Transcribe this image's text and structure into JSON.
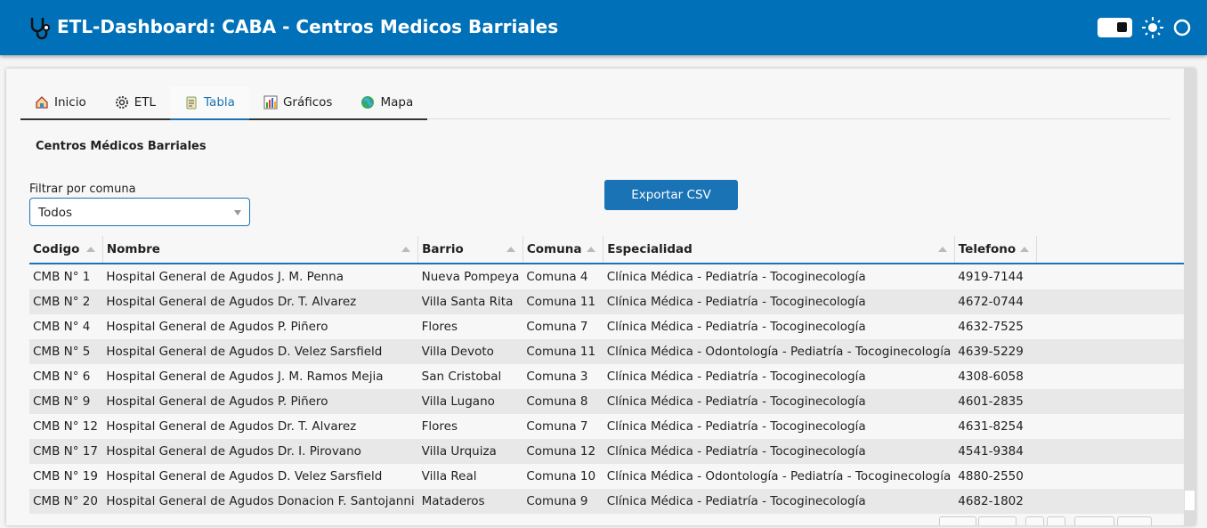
{
  "header": {
    "title": "ETL-Dashboard: CABA - Centros Medicos Barriales"
  },
  "tabs": [
    "Inicio",
    "ETL",
    "Tabla",
    "Gráficos",
    "Mapa"
  ],
  "section_title": "Centros Médicos Barriales",
  "filter": {
    "label": "Filtrar por comuna",
    "selected": "Todos"
  },
  "export_button": "Exportar CSV",
  "table": {
    "columns": [
      "Codigo",
      "Nombre",
      "Barrio",
      "Comuna",
      "Especialidad",
      "Telefono"
    ],
    "rows": [
      [
        "CMB N° 1",
        "Hospital General de Agudos J. M. Penna",
        "Nueva Pompeya",
        "Comuna 4",
        "Clínica Médica - Pediatría - Tocoginecología",
        "4919-7144"
      ],
      [
        "CMB N° 2",
        "Hospital General de Agudos Dr. T. Alvarez",
        "Villa Santa Rita",
        "Comuna 11",
        "Clínica Médica - Pediatría - Tocoginecología",
        "4672-0744"
      ],
      [
        "CMB N° 4",
        "Hospital General de Agudos P. Piñero",
        "Flores",
        "Comuna 7",
        "Clínica Médica - Pediatría - Tocoginecología",
        "4632-7525"
      ],
      [
        "CMB N° 5",
        "Hospital General de Agudos D. Velez Sarsfield",
        "Villa Devoto",
        "Comuna 11",
        "Clínica Médica - Odontología - Pediatría - Tocoginecología",
        "4639-5229"
      ],
      [
        "CMB N° 6",
        "Hospital General de Agudos J. M. Ramos Mejia",
        "San Cristobal",
        "Comuna 3",
        "Clínica Médica - Pediatría - Tocoginecología",
        "4308-6058"
      ],
      [
        "CMB N° 9",
        "Hospital General de Agudos P. Piñero",
        "Villa Lugano",
        "Comuna 8",
        "Clínica Médica - Pediatría - Tocoginecología",
        "4601-2835"
      ],
      [
        "CMB N° 12",
        "Hospital General de Agudos Dr. T. Alvarez",
        "Flores",
        "Comuna 7",
        "Clínica Médica - Pediatría - Tocoginecología",
        "4631-8254"
      ],
      [
        "CMB N° 17",
        "Hospital General de Agudos Dr. I. Pirovano",
        "Villa Urquiza",
        "Comuna 12",
        "Clínica Médica - Pediatría - Tocoginecología",
        "4541-9384"
      ],
      [
        "CMB N° 19",
        "Hospital General de Agudos D. Velez Sarsfield",
        "Villa Real",
        "Comuna 10",
        "Clínica Médica - Odontología - Pediatría - Tocoginecología",
        "4880-2550"
      ],
      [
        "CMB N° 20",
        "Hospital General de Agudos Donacion F. Santojanni",
        "Mataderos",
        "Comuna 9",
        "Clínica Médica - Pediatría - Tocoginecología",
        "4682-1802"
      ]
    ]
  }
}
